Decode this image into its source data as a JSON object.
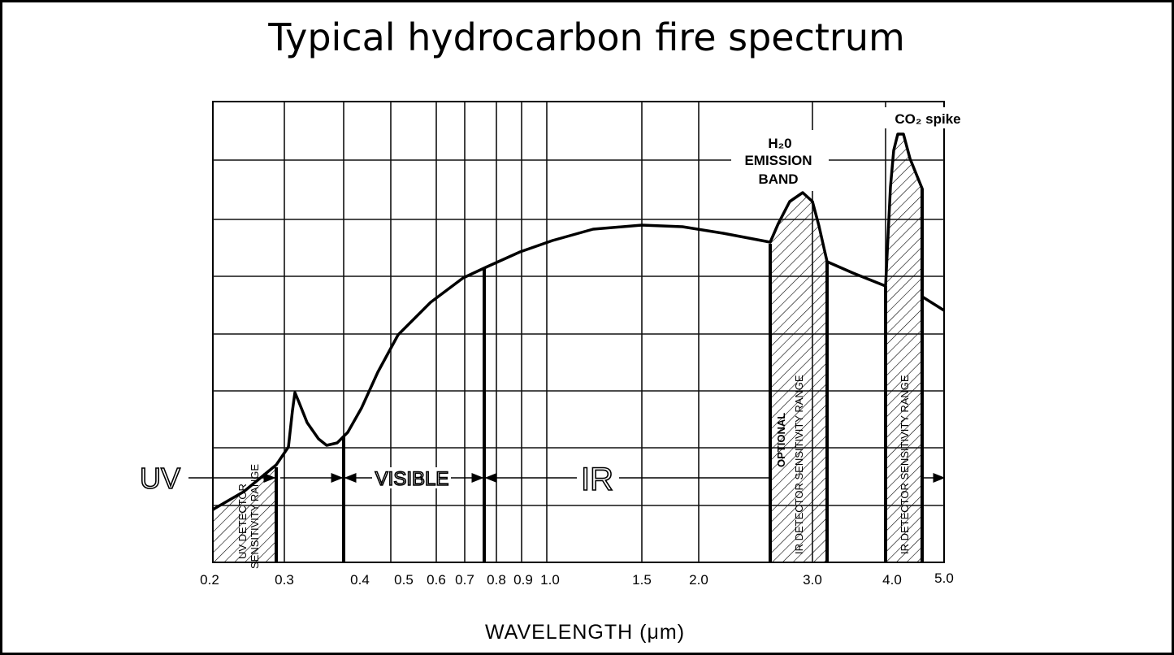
{
  "title": "Typical hydrocarbon fire spectrum",
  "x_axis": {
    "label": "WAVELENGTH (μm)",
    "ticks": [
      "0.2",
      "0.3",
      "0.4",
      "0.5",
      "0.6",
      "0.7",
      "0.8",
      "0.9",
      "1.0",
      "1.5",
      "2.0",
      "3.0",
      "4.0",
      "5.0"
    ]
  },
  "bands": {
    "uv": "UV",
    "visible": "VISIBLE",
    "ir": "IR"
  },
  "regions": {
    "uv_detector": [
      "UV DETECTOR",
      "SENSITIVITY RANGE"
    ],
    "optional_ir_detector": [
      "OPTIONAL",
      "IR DETECTOR SENSITIVITY RANGE"
    ],
    "ir_detector": "IR DETECTOR SENSITIVITY RANGE"
  },
  "annotations": {
    "h2o": [
      "H₂0",
      "EMISSION",
      "BAND"
    ],
    "co2": "CO₂ spike"
  }
}
